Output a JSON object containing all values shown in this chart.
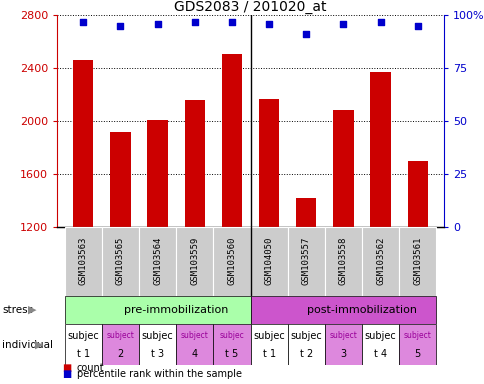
{
  "title": "GDS2083 / 201020_at",
  "samples": [
    "GSM103563",
    "GSM103565",
    "GSM103564",
    "GSM103559",
    "GSM103560",
    "GSM104050",
    "GSM103557",
    "GSM103558",
    "GSM103562",
    "GSM103561"
  ],
  "counts": [
    2460,
    1920,
    2010,
    2160,
    2510,
    2170,
    1420,
    2080,
    2370,
    1700
  ],
  "percentile_ranks": [
    97,
    95,
    96,
    97,
    97,
    96,
    91,
    96,
    97,
    95
  ],
  "ymin": 1200,
  "ymax": 2800,
  "yticks": [
    1200,
    1600,
    2000,
    2400,
    2800
  ],
  "right_yticks": [
    0,
    25,
    50,
    75,
    100
  ],
  "bar_color": "#cc0000",
  "dot_color": "#0000cc",
  "stress_groups": [
    {
      "label": "pre-immobilization",
      "start": 0,
      "end": 5,
      "color": "#aaffaa"
    },
    {
      "label": "post-immobilization",
      "start": 5,
      "end": 10,
      "color": "#cc55cc"
    }
  ],
  "individual_colors": [
    "#ffffff",
    "#dd88dd",
    "#ffffff",
    "#dd88dd",
    "#dd88dd",
    "#ffffff",
    "#ffffff",
    "#dd88dd",
    "#ffffff",
    "#dd88dd"
  ],
  "individual_labels_line1": [
    "subjec",
    "subject",
    "subjec",
    "subject",
    "subjec",
    "subjec",
    "subjec",
    "subject",
    "subjec",
    "subject"
  ],
  "individual_labels_line2": [
    "t 1",
    "2",
    "t 3",
    "4",
    "t 5",
    "t 1",
    "t 2",
    "3",
    "t 4",
    "5"
  ],
  "bar_color_white": [
    "#ffffff",
    "#dd88dd",
    "#ffffff",
    "#dd88dd",
    "#dd88dd",
    "#ffffff",
    "#ffffff",
    "#dd88dd",
    "#ffffff",
    "#dd88dd"
  ],
  "bar_color_pink": "#dd88dd",
  "legend_count_color": "#cc0000",
  "legend_dot_color": "#0000cc",
  "tick_label_color_left": "#cc0000",
  "tick_label_color_right": "#0000cc",
  "bar_width": 0.55,
  "sample_bg": "#cccccc",
  "fig_bg": "#ffffff"
}
